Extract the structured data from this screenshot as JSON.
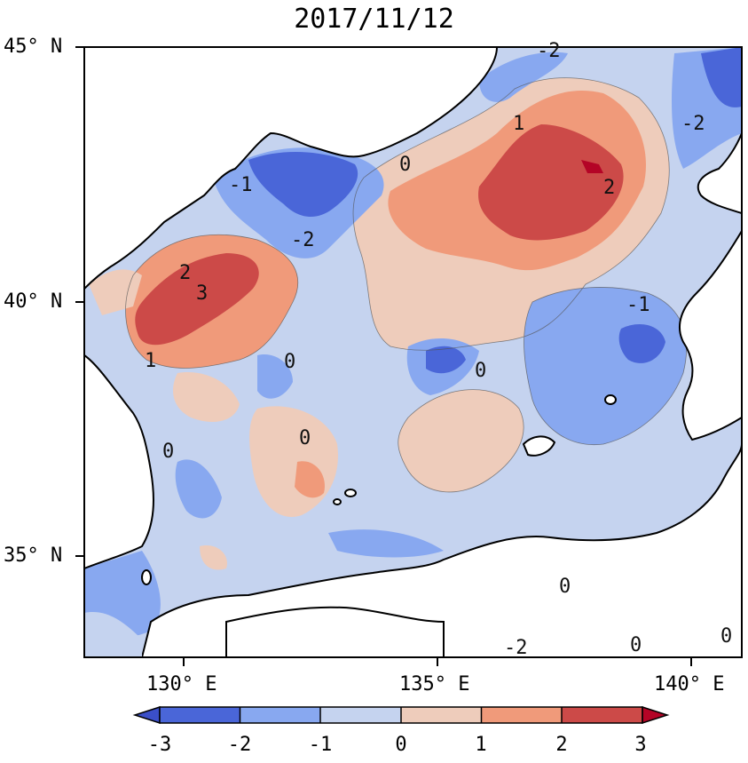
{
  "title": "2017/11/12",
  "lat_labels": [
    "45° N",
    "40° N",
    "35° N"
  ],
  "lon_labels": [
    "130° E",
    "135° E",
    "140° E"
  ],
  "colorbar": {
    "ticks": [
      "-3",
      "-2",
      "-1",
      "0",
      "1",
      "2",
      "3"
    ],
    "colors": [
      "#4a66d8",
      "#88a8f0",
      "#c5d3ef",
      "#eeccbb",
      "#f09a7a",
      "#cc4a48"
    ],
    "extend_low": "#3b4fc8",
    "extend_high": "#b40426"
  },
  "contour_labels": [
    "1",
    "-2",
    "-2",
    "0",
    "-1",
    "-2",
    "2",
    "3",
    "1",
    "0",
    "0",
    "-1",
    "2",
    "0",
    "0",
    "0",
    "-2",
    "0",
    "0"
  ],
  "palette": {
    "land": "#ffffff",
    "coast": "#000000"
  }
}
